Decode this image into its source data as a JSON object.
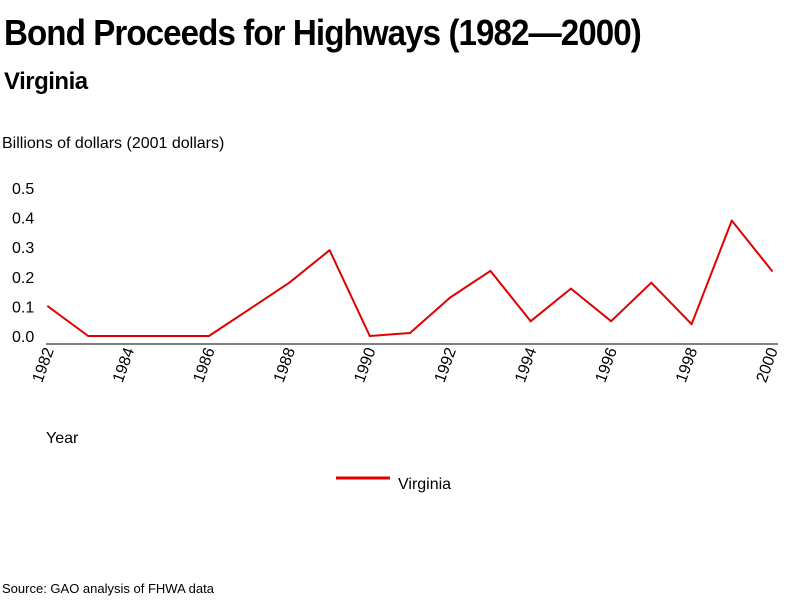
{
  "title": "Bond Proceeds for Highways (1982—2000)",
  "subtitle": "Virginia",
  "source": "Source: GAO analysis of FHWA data",
  "colors": {
    "series": "#e00000",
    "axis": "#000000",
    "background": "#ffffff"
  },
  "chart_data": {
    "type": "line",
    "title": "Bond Proceeds for Highways (1982—2000)",
    "subtitle": "Virginia",
    "xlabel": "Year",
    "ylabel": "Billions of dollars (2001 dollars)",
    "ylim": [
      0,
      0.5
    ],
    "xlim": [
      1982,
      2000
    ],
    "yticks": [
      "0.0",
      "0.1",
      "0.2",
      "0.3",
      "0.4",
      "0.5"
    ],
    "xticks": [
      "1982",
      "1984",
      "1986",
      "1988",
      "1990",
      "1992",
      "1994",
      "1996",
      "1998",
      "2000"
    ],
    "grid": false,
    "legend_position": "bottom-center",
    "x": [
      1982,
      1983,
      1984,
      1985,
      1986,
      1987,
      1988,
      1989,
      1990,
      1991,
      1992,
      1993,
      1994,
      1995,
      1996,
      1997,
      1998,
      1999,
      2000
    ],
    "series": [
      {
        "name": "Virginia",
        "color": "#e00000",
        "values": [
          0.1,
          0.0,
          0.0,
          0.0,
          0.0,
          0.09,
          0.18,
          0.29,
          0.0,
          0.01,
          0.13,
          0.22,
          0.05,
          0.16,
          0.05,
          0.18,
          0.04,
          0.39,
          0.22
        ]
      }
    ]
  }
}
